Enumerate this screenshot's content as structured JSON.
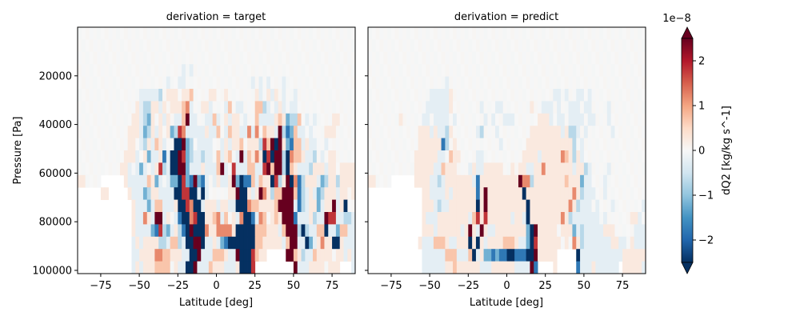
{
  "chart_data": {
    "type": "heatmap",
    "panels": [
      {
        "title": "derivation = target",
        "xlabel": "Latitude [deg]",
        "ylabel": "Pressure [Pa]",
        "grid": "r00: 000000000000000000000000000000000000000000000000000000000000000000000000|r01: 000000000000000000000000000000000000000000000000000000000000000000000000|r02: 000000000000000000000000000000000000000000000000000000000000000000000000|r03: 000000000000000000000000000A0A00000000000000000000000000000000000000000000|r04: 00000000000000000000000A00AA00000000000000000A0A0A000A00000000000000000000|r05: 0000000000000000AAAAAB0aaa0aab0000aa00a0000000aA0aAa0A00A0000000000000000|r06: 000000000000000aABBaaAa0aaabcA00aaA000Ab0AA000bbBA0AaA0AA00000000000000000|r07: 00000000000000aaABCa0aAa0AAbeAA00AAbA0aAaa0A00bAAAAabaCBBb0A0A0000aa000000|r08: 0000000000000aaaACBaAa0aCBdcAAAAAaAAb0AbaaAAcAc0baaAeBDCbAA0A000aaa00000000|r09: 0000000000000aa0ABaAbaA00EEeCB0AAAA00AaAaab0aaaBdbeEeaCDbbAaAA00A0000000aa|r10: 000000000000aaaA0aCAAaDAEEedCBAABAA0bAab0AeAbacaEdEeeBEcbbaAAB0A0aa00000aa|r11: 00000000000aaA0ACA0AadBAEEeeCAAAaAAAbeA0dAAAbbAAdebeeBEbaAAABaaaAaa0aaaaaa|r12: aa0000......aAAAAAbaCA0ACCEdCDeCDA0AaAAaeCEDDbAbaaEdBaeEcDBaaaACBaaBaaaaaaa|r13: ......aa.....aAAACBaaAAAAEEddEEAEA00000aaeEEaAaecaBbbeeebDBAaACBaaaAaa0aaaa|r14: ..............aAAACAbbAAAaEEdcEEAaaaAaaAAEEEcbbaaaabeeeeADBAaaCAaaeAaE00AAa|r15: ..............aAAcaAeeAa0ADEEcdEEaabcAb0aAcEEDAcb0abaeeeDAAAaBAAeddAABBAAAA|r16: ..............aAAAACDdBCAaBDEeEEEcaaccccaEEEEEbbbaaaAbeeeBEBAAbbEAACbbAAAAA|r17: ..............AaAaaaaBBAbbBAEEeeEAAaACDEEEEEEEbbaaaaaAbeeAAECAacaaEEaAAAAAa|r18: ..............AAaaaaccbbaaaAAEEeAAAbbbaAAeEEEdbaa.....eebaBAAbaaaa0aaAaAAb|r19: ..............AaAaaabbbb0aAAEEeAAAbaaaAAAaEEEd..........eAAAaaaa0aaa...AAA"
      },
      {
        "title": "derivation = predict",
        "xlabel": "Latitude [deg]",
        "ylabel": "",
        "grid": "r00: 000000000000000000000000000000000000000000000000000000000000000000000000|r01: 000000000000000000000000000000000000000000000000000000000000000000000000|r02: 000000000000000000000000000000000000000000000000000000000000000000000000|r03: 000000000000000000000000000000000000000000000000000000000000000000000000|r04: 00000000000000000000A0000000000000000000000000000000000000000000000000000|r05: 0000000000000000AAAAAa00000000000000000000000000AA0A00AA0A000000000000000|r06: 000000000000000AAAAAAa0000000A000AA0000000a00AAA0A00AAA0AA0000A0000000000|r07: 00000000a00000AA0AAAA0A0000000A0A00AAA000000aaaA0AA0AAAA0AA000A00000000000|r08: 0000000000000aaaAaAABa000000AB000A00000000aaaaaaaaAaBBA0A000000A0000000000|r09: 0000000000000aaaaaaDB0a00000000000A000000aaaaaaaaaaaaB0A00000000000000000|r10: 000000000000aaaaaaAA0baa0000AA0000000000aaaaAaaaaacbaBaA00000000000000000|r11: 000000000000aaaaaAAbaaa000AaAAaaaaa00a0aaAAaacaaaaaaaAaaBA0000A00000000000|r12: aa0000......aaaaAABAaaaaaaaADaaaaaaaaaaeccBaaaaaaaabaaaCAA000A0000000000000|r13: ..............aaAAAAaAaaaaaaDaeaaaaaaaaaEaaaaaaaaaaaacaBAAA00A000000000000|r14: ..............aaaABAAaaaaaaaEaeaaaaaaaaaaEaaaaaaaaaacaBAAA0A000A0000000AA|r15: ..............aAAAaaaaaaaaAbdadaaaaaaAaaAEaaaaaaaacaBAAAAAAA0A000000aaA0AB|r16: ..............aaaAaaaaaaAaeaAeaAAaaaaaaaaCEeaaaaa0aaaCABAAAAAaaa00000AAAA|r17: .............aAAAbbbaAAaaaEaEaAaaaabbbaAACEdaaaaaa0a0caBAAAAAAAaaAA0aAAAA|r18: ..............AAAAAAbbbAAAbEAaCCDCDDEEDDDEEeaaaaa.....EAAAAAAAAAAAaaaaaa|r19: ..............AAAAAAaabaaaaaaAAAaaaaaaAAAAeD....a.....DAAAaAAAAAA.aaaaaA"
      }
    ],
    "grid_encoding": {
      "columns": "72 latitude bins, 2.5 deg each, from -90 to 90",
      "rows": "20 pressure levels from top (~0 Pa) to bottom (~101325 Pa)",
      ".": "missing",
      "0": 0,
      "a": 0.25,
      "b": 0.7,
      "c": 1.2,
      "d": 1.8,
      "e": 2.5,
      "A": -0.25,
      "B": -0.7,
      "C": -1.2,
      "D": -1.8,
      "E": -2.5
    },
    "x_ticks": [
      -75,
      -50,
      -25,
      0,
      25,
      50,
      75
    ],
    "x_tick_labels": [
      "−75",
      "−50",
      "−25",
      "0",
      "25",
      "50",
      "75"
    ],
    "xlim": [
      -90,
      90
    ],
    "y_ticks": [
      20000,
      40000,
      60000,
      80000,
      100000
    ],
    "y_tick_labels": [
      "20000",
      "40000",
      "60000",
      "80000",
      "100000"
    ],
    "ylim": [
      101325,
      0
    ],
    "colorbar": {
      "label": "dQ2 [kg/kg s^-1]",
      "offset_text": "1e−8",
      "ticks": [
        2,
        1,
        0,
        -1,
        -2
      ],
      "tick_labels": [
        "2",
        "1",
        "0",
        "−1",
        "−2"
      ],
      "vlim": [
        -2.5,
        2.5
      ],
      "extend": "both",
      "colormap": "RdBu_r"
    }
  }
}
